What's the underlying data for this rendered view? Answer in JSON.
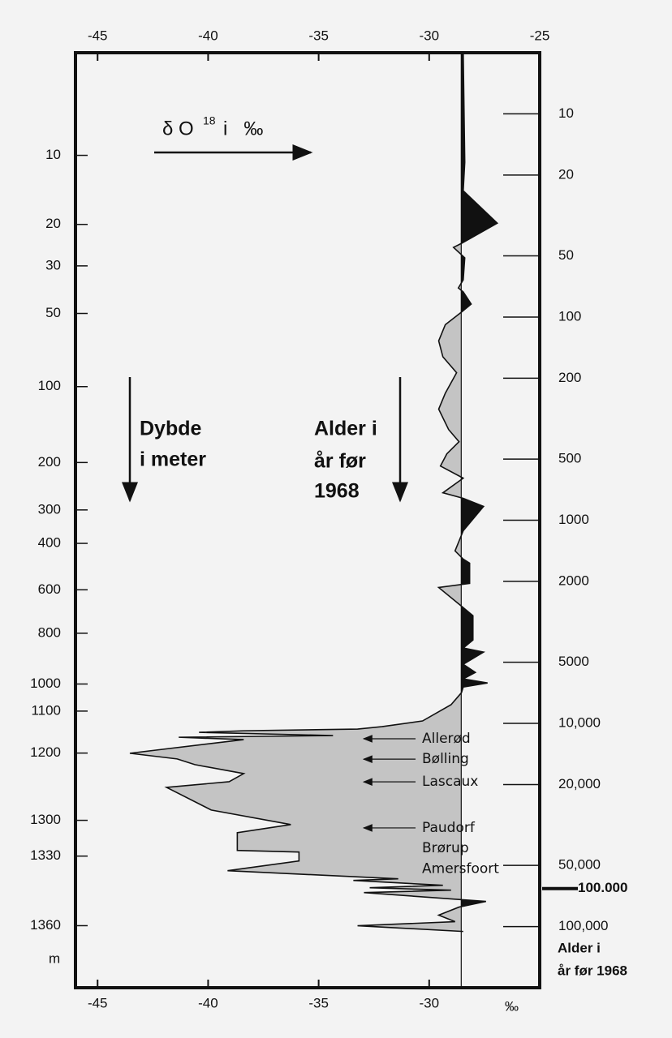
{
  "chart_data": {
    "type": "line",
    "x_label": {
      "base": "δ O",
      "sup": "18",
      "unit": "i   ‰"
    },
    "bottom_unit": "‰",
    "xlim": [
      -46,
      -25
    ],
    "xticks_top": [
      -45,
      -40,
      -35,
      -30,
      -25
    ],
    "xticks_bottom": [
      -45,
      -40,
      -35,
      -30
    ],
    "ylim": [
      5,
      200000
    ],
    "yscale": "log",
    "yticks": [
      10,
      20,
      50,
      100,
      200,
      500,
      1000,
      2000,
      5000,
      {
        "value": 10000,
        "label": "10,000"
      },
      {
        "value": 20000,
        "label": "20,000"
      },
      {
        "value": 50000,
        "label": "50,000"
      },
      {
        "value": 100000,
        "label": "100,000"
      }
    ],
    "y_label": [
      "Alder i",
      "år før 1968"
    ],
    "depth_ticks": [
      {
        "depth": 10,
        "age": 16
      },
      {
        "depth": 20,
        "age": 35
      },
      {
        "depth": 30,
        "age": 56
      },
      {
        "depth": 50,
        "age": 96
      },
      {
        "depth": 100,
        "age": 220
      },
      {
        "depth": 200,
        "age": 520
      },
      {
        "depth": 300,
        "age": 890
      },
      {
        "depth": 400,
        "age": 1300
      },
      {
        "depth": 600,
        "age": 2200
      },
      {
        "depth": 800,
        "age": 3600
      },
      {
        "depth": 1000,
        "age": 6400
      },
      {
        "depth": 1100,
        "age": 8700
      },
      {
        "depth": 1200,
        "age": 14000
      },
      {
        "depth": 1300,
        "age": 30000
      },
      {
        "depth": 1330,
        "age": 45000
      },
      {
        "depth": 1360,
        "age": 99000
      }
    ],
    "depth_unit": "m",
    "depth_label": [
      "Dybde",
      "i meter"
    ],
    "age_label": [
      "Alder i",
      "år før",
      "1968"
    ],
    "reference": -28.55,
    "series": [
      {
        "color_below": "#c4c4c4",
        "color_above": "#111111",
        "values": [
          -28.46,
          -28.39,
          -28.46,
          -26.92,
          -28.54,
          -28.9,
          -28.39,
          -28.46,
          -28.68,
          -28.46,
          -28.1,
          -28.54,
          -29.27,
          -29.57,
          -29.38,
          -28.76,
          -29.27,
          -29.57,
          -29.12,
          -28.65,
          -29.2,
          -29.49,
          -28.46,
          -29.38,
          -28.46,
          -27.54,
          -28.46,
          -28.83,
          -28.46,
          -28.17,
          -28.17,
          -29.57,
          -28.46,
          -28.02,
          -28.02,
          -28.46,
          -27.54,
          -28.46,
          -27.91,
          -28.46,
          -27.36,
          -28.46,
          -28.54,
          -29.01,
          -30.3,
          -32.14,
          -33.24,
          -38.39,
          -40.41,
          -34.35,
          -41.33,
          -38.39,
          -43.54,
          -41.4,
          -40.6,
          -38.39,
          -39.05,
          -41.88,
          -39.86,
          -36.26,
          -38.68,
          -38.68,
          -35.89,
          -35.89,
          -39.12,
          -31.4,
          -33.43,
          -29.38,
          -32.69,
          -29.01,
          -32.95,
          -27.43,
          -28.65,
          -29.57,
          -28.83,
          -33.24,
          -28.46
        ],
        "ages": [
          5,
          17.3,
          23.9,
          34.5,
          43.4,
          45.4,
          51.1,
          65.6,
          71.9,
          75.2,
          86.3,
          94.6,
          109,
          131,
          157,
          188,
          237,
          284,
          358,
          411,
          471,
          541,
          621,
          733,
          780,
          855,
          1127,
          1416,
          1553,
          1626,
          2046,
          2143,
          2692,
          2951,
          3890,
          4256,
          4457,
          5117,
          5610,
          6039,
          6324,
          6622,
          7063,
          8091,
          9727,
          10380,
          10670,
          10870,
          11070,
          11480,
          11700,
          12020,
          14030,
          14960,
          15960,
          17660,
          19360,
          20650,
          26690,
          31480,
          34510,
          42200,
          42980,
          47530,
          53090,
          58210,
          59290,
          62660,
          64420,
          66220,
          68060,
          75200,
          80200,
          87900,
          94600,
          99100,
          105700
        ]
      }
    ],
    "events": [
      {
        "label": "Allerød",
        "age": 11900
      },
      {
        "label": "Bølling",
        "age": 15000
      },
      {
        "label": "Lascaux",
        "age": 19400
      },
      {
        "label": "Paudorf",
        "age": 32700
      },
      {
        "label": "Brørup",
        "age": 41100
      },
      {
        "label": "Amersfoort",
        "age": 52100
      }
    ],
    "marker": {
      "label": "100.000",
      "age": 65000
    }
  }
}
